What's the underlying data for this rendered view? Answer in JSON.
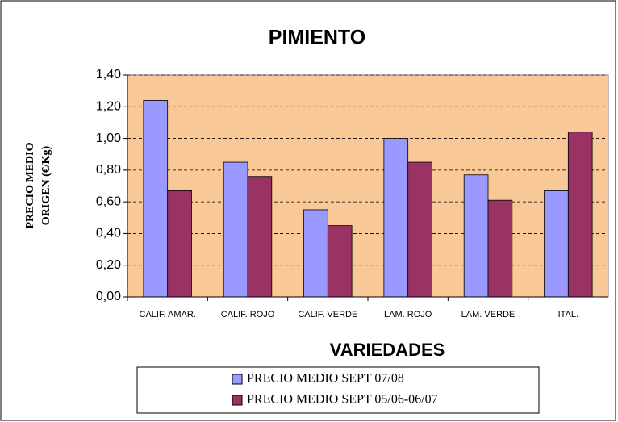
{
  "chart_data": {
    "type": "bar",
    "title": "PIMIENTO",
    "ylabel_lines": [
      "PRECIO MEDIO",
      "ORIGEN (€/Kg)"
    ],
    "xlabel": "VARIEDADES",
    "categories": [
      "CALIF. AMAR.",
      "CALIF. ROJO",
      "CALIF. VERDE",
      "LAM. ROJO",
      "LAM. VERDE",
      "ITAL."
    ],
    "series": [
      {
        "name": "PRECIO MEDIO SEPT 07/08",
        "color": "#9999ff",
        "values": [
          1.24,
          0.85,
          0.55,
          1.0,
          0.77,
          0.67
        ]
      },
      {
        "name": "PRECIO MEDIO SEPT 05/06-06/07",
        "color": "#993366",
        "values": [
          0.67,
          0.76,
          0.45,
          0.85,
          0.61,
          1.04
        ]
      }
    ],
    "ylim": [
      0,
      1.4
    ],
    "yticks": [
      {
        "value": 0,
        "label": "0,00"
      },
      {
        "value": 0.2,
        "label": "0,20"
      },
      {
        "value": 0.4,
        "label": "0,40"
      },
      {
        "value": 0.6,
        "label": "0,60"
      },
      {
        "value": 0.8,
        "label": "0,80"
      },
      {
        "value": 1.0,
        "label": "1,00"
      },
      {
        "value": 1.2,
        "label": "1,20"
      },
      {
        "value": 1.4,
        "label": "1,40"
      }
    ],
    "grid": true,
    "plot_background": "#f9c897",
    "legend": "bottom"
  }
}
